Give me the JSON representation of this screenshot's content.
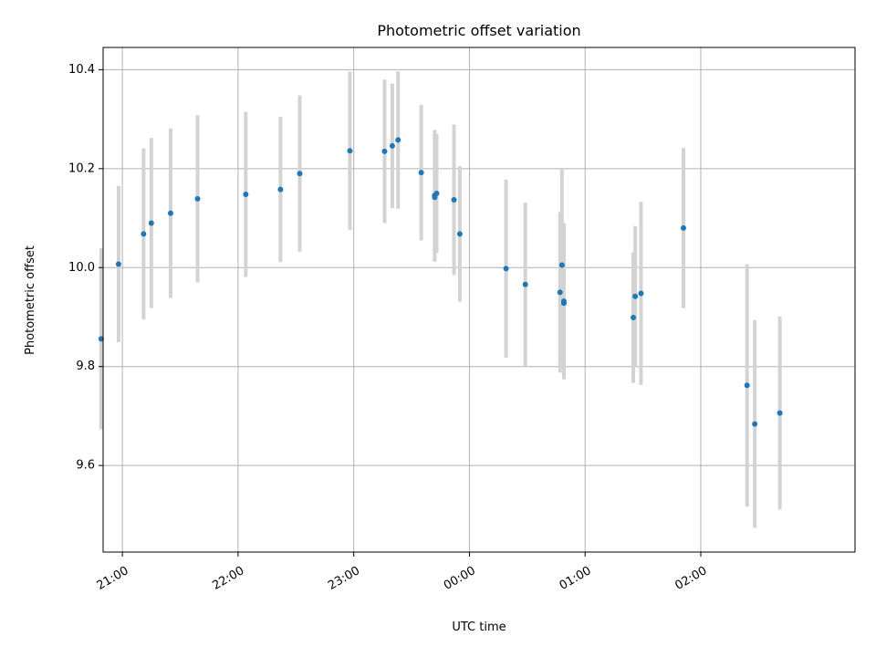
{
  "chart_data": {
    "type": "scatter",
    "title": "Photometric offset variation",
    "xlabel": "UTC time",
    "ylabel": "Photometric offset",
    "xlim": [
      "20:50",
      "03:20"
    ],
    "ylim": [
      9.425,
      10.445
    ],
    "x_ticks": [
      "21:00",
      "22:00",
      "23:00",
      "00:00",
      "01:00",
      "02:00"
    ],
    "y_ticks": [
      "9.6",
      "9.8",
      "10.0",
      "10.2",
      "10.4"
    ],
    "grid": true,
    "colors": {
      "points": "#1f77b4",
      "errorbars": "#d3d3d3",
      "grid": "#b0b0b0"
    },
    "points": [
      {
        "x": "20:49",
        "y": 9.856,
        "err": 0.183
      },
      {
        "x": "20:58",
        "y": 10.007,
        "err": 0.158
      },
      {
        "x": "21:11",
        "y": 10.068,
        "err": 0.173
      },
      {
        "x": "21:15",
        "y": 10.09,
        "err": 0.172
      },
      {
        "x": "21:25",
        "y": 10.11,
        "err": 0.171
      },
      {
        "x": "21:39",
        "y": 10.139,
        "err": 0.169
      },
      {
        "x": "22:04",
        "y": 10.148,
        "err": 0.167
      },
      {
        "x": "22:22",
        "y": 10.158,
        "err": 0.147
      },
      {
        "x": "22:32",
        "y": 10.19,
        "err": 0.158
      },
      {
        "x": "22:58",
        "y": 10.236,
        "err": 0.16
      },
      {
        "x": "23:16",
        "y": 10.235,
        "err": 0.145
      },
      {
        "x": "23:20",
        "y": 10.246,
        "err": 0.126
      },
      {
        "x": "23:23",
        "y": 10.258,
        "err": 0.139
      },
      {
        "x": "23:35",
        "y": 10.192,
        "err": 0.137
      },
      {
        "x": "23:42",
        "y": 10.146,
        "err": 0.132
      },
      {
        "x": "23:42",
        "y": 10.142,
        "err": 0.13
      },
      {
        "x": "23:43",
        "y": 10.15,
        "err": 0.12
      },
      {
        "x": "23:52",
        "y": 10.137,
        "err": 0.152
      },
      {
        "x": "23:55",
        "y": 10.068,
        "err": 0.137
      },
      {
        "x": "00:19",
        "y": 9.998,
        "err": 0.18
      },
      {
        "x": "00:29",
        "y": 9.966,
        "err": 0.165
      },
      {
        "x": "00:47",
        "y": 9.95,
        "err": 0.162
      },
      {
        "x": "00:48",
        "y": 10.005,
        "err": 0.195
      },
      {
        "x": "00:49",
        "y": 9.932,
        "err": 0.158
      },
      {
        "x": "00:49",
        "y": 9.928,
        "err": 0.15
      },
      {
        "x": "01:25",
        "y": 9.899,
        "err": 0.132
      },
      {
        "x": "01:26",
        "y": 9.942,
        "err": 0.142
      },
      {
        "x": "01:29",
        "y": 9.948,
        "err": 0.185
      },
      {
        "x": "01:51",
        "y": 10.08,
        "err": 0.162
      },
      {
        "x": "02:24",
        "y": 9.762,
        "err": 0.245
      },
      {
        "x": "02:28",
        "y": 9.684,
        "err": 0.21
      },
      {
        "x": "02:41",
        "y": 9.706,
        "err": 0.195
      }
    ]
  }
}
